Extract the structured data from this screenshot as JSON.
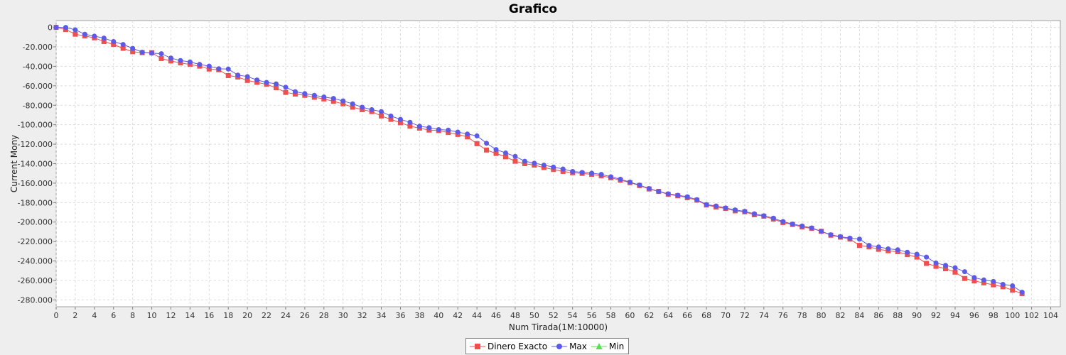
{
  "chart_data": {
    "type": "line",
    "title": "Grafico",
    "xlabel": "Num Tirada(1M:10000)",
    "ylabel": "Current Mony",
    "xlim": [
      0,
      105
    ],
    "ylim": [
      -287000,
      7000
    ],
    "xticks": [
      0,
      2,
      4,
      6,
      8,
      10,
      12,
      14,
      16,
      18,
      20,
      22,
      24,
      26,
      28,
      30,
      32,
      34,
      36,
      38,
      40,
      42,
      44,
      46,
      48,
      50,
      52,
      54,
      56,
      58,
      60,
      62,
      64,
      66,
      68,
      70,
      72,
      74,
      76,
      78,
      80,
      82,
      84,
      86,
      88,
      90,
      92,
      94,
      96,
      98,
      100,
      102,
      104
    ],
    "yticks": [
      0,
      -20000,
      -40000,
      -60000,
      -80000,
      -100000,
      -120000,
      -140000,
      -160000,
      -180000,
      -200000,
      -220000,
      -240000,
      -260000,
      -280000
    ],
    "ytick_labels": [
      "0",
      "-20.000",
      "-40.000",
      "-60.000",
      "-80.000",
      "-100.000",
      "-120.000",
      "-140.000",
      "-160.000",
      "-180.000",
      "-200.000",
      "-220.000",
      "-240.000",
      "-260.000",
      "-280.000"
    ],
    "grid": true,
    "legend_position": "bottom-center",
    "series": [
      {
        "name": "Dinero Exacto",
        "color": "#ef4f4f",
        "marker": "square",
        "values": [
          0,
          -2200,
          -7000,
          -8800,
          -10700,
          -14500,
          -17500,
          -21500,
          -25000,
          -26000,
          -26000,
          -32000,
          -34500,
          -36500,
          -38000,
          -39800,
          -42800,
          -43500,
          -49500,
          -51000,
          -54500,
          -56500,
          -58500,
          -62000,
          -66800,
          -68500,
          -69800,
          -71800,
          -73500,
          -76000,
          -78500,
          -82000,
          -84500,
          -86500,
          -91000,
          -94500,
          -98000,
          -101500,
          -103500,
          -105500,
          -106000,
          -108000,
          -110000,
          -112500,
          -119500,
          -126000,
          -129500,
          -133000,
          -137500,
          -140000,
          -141500,
          -144000,
          -146000,
          -148000,
          -149300,
          -150000,
          -151000,
          -152500,
          -154500,
          -157000,
          -159500,
          -162500,
          -166000,
          -168500,
          -171500,
          -173000,
          -175000,
          -177500,
          -182500,
          -184500,
          -186000,
          -188500,
          -189500,
          -192500,
          -194000,
          -197000,
          -200500,
          -202500,
          -205000,
          -206500,
          -209500,
          -213500,
          -215500,
          -217500,
          -224000,
          -225500,
          -228000,
          -229500,
          -230500,
          -233500,
          -236000,
          -242500,
          -245500,
          -248000,
          -251500,
          -258000,
          -260500,
          -262500,
          -264500,
          -266500,
          -270000,
          -273500
        ]
      },
      {
        "name": "Max",
        "color": "#5b5be8",
        "marker": "circle",
        "values": [
          0,
          0,
          -2500,
          -7000,
          -9000,
          -11000,
          -14500,
          -17500,
          -21500,
          -25500,
          -26500,
          -27000,
          -31500,
          -34000,
          -35500,
          -38000,
          -39800,
          -42500,
          -42800,
          -49000,
          -50500,
          -54000,
          -56500,
          -58000,
          -61500,
          -66000,
          -68000,
          -69800,
          -71500,
          -73000,
          -75500,
          -78500,
          -82000,
          -84500,
          -86500,
          -91000,
          -94500,
          -97500,
          -101500,
          -103000,
          -105000,
          -105500,
          -107500,
          -109500,
          -111500,
          -119000,
          -125500,
          -129000,
          -132500,
          -137500,
          -139500,
          -141500,
          -143500,
          -145500,
          -148000,
          -149000,
          -149800,
          -151000,
          -153500,
          -156000,
          -159000,
          -162000,
          -165500,
          -168500,
          -171000,
          -172500,
          -174000,
          -177000,
          -182000,
          -183500,
          -185500,
          -187500,
          -189000,
          -191500,
          -193500,
          -196000,
          -199500,
          -202000,
          -204000,
          -206000,
          -209500,
          -213000,
          -215000,
          -216500,
          -217500,
          -224000,
          -225500,
          -227500,
          -228500,
          -231000,
          -233000,
          -236000,
          -242000,
          -244500,
          -247000,
          -251000,
          -257000,
          -259500,
          -261000,
          -264000,
          -265500,
          -272000
        ]
      },
      {
        "name": "Min",
        "color": "#55e055",
        "marker": "triangle",
        "values": []
      }
    ]
  }
}
